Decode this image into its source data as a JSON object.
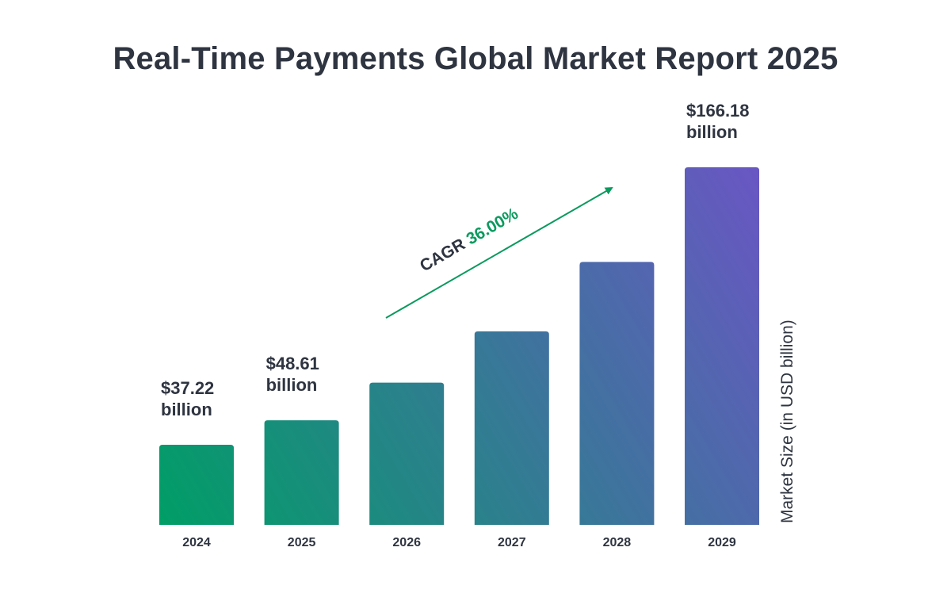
{
  "chart_data": {
    "type": "bar",
    "title": "Real-Time Payments Global Market Report 2025",
    "categories": [
      "2024",
      "2025",
      "2026",
      "2027",
      "2028",
      "2029"
    ],
    "values": [
      37.22,
      48.61,
      66.1,
      89.9,
      122.2,
      166.18
    ],
    "value_labels": [
      {
        "category": "2024",
        "line1": "$37.22",
        "line2": "billion"
      },
      {
        "category": "2025",
        "line1": "$48.61",
        "line2": "billion"
      },
      {
        "category": "2029",
        "line1": "$166.18",
        "line2": "billion"
      }
    ],
    "ylabel": "Market Size (in USD billion)",
    "xlabel": "",
    "ylim": [
      0,
      166.18
    ],
    "grid": false,
    "annotation": {
      "prefix": "CAGR ",
      "value": "36.00%"
    },
    "colors": {
      "bar_start": "#009e66",
      "bar_end": "#6a56c4",
      "cagr_value": "#0a9a5e",
      "text": "#2e3440"
    }
  }
}
